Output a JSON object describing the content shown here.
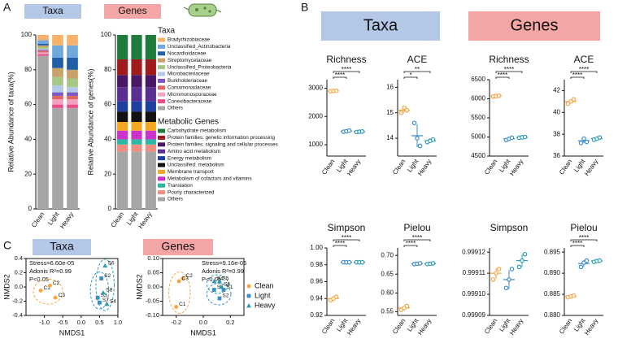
{
  "panel_labels": [
    "A",
    "B",
    "C"
  ],
  "headers": [
    {
      "text": "Taxa",
      "color": "#b4c7e7"
    },
    {
      "text": "Genes",
      "color": "#f4a6a6"
    }
  ],
  "chart_data": [
    {
      "type": "bar",
      "stacked": true,
      "title": "Taxa",
      "title_background": "#b4c7e7",
      "ylabel": "Relative Abundance of taxa(%)",
      "legend_title": "Taxa",
      "categories": [
        "Clean",
        "Light",
        "Heavy"
      ],
      "ylim": [
        0,
        100
      ],
      "yticks": [
        0,
        20,
        40,
        60,
        80,
        100
      ],
      "series": [
        {
          "name": "Bradyrhizobiaceae",
          "color": "#f6b26b",
          "values": [
            3,
            6,
            6
          ]
        },
        {
          "name": "Unclassified_Actinobacteria",
          "color": "#6fa8dc",
          "values": [
            2,
            7,
            7
          ]
        },
        {
          "name": "Nocardioidaceae",
          "color": "#1f5fa8",
          "values": [
            1,
            6,
            7
          ]
        },
        {
          "name": "Streptomycetaceae",
          "color": "#c9a26b",
          "values": [
            1,
            5,
            5
          ]
        },
        {
          "name": "Unclassified_Proteobacteria",
          "color": "#a8c686",
          "values": [
            1,
            5,
            5
          ]
        },
        {
          "name": "Microbacteriaceae",
          "color": "#b4c8ea",
          "values": [
            0.5,
            4,
            3
          ]
        },
        {
          "name": "Burkholderiaceae",
          "color": "#7e57c2",
          "values": [
            0.5,
            2,
            2
          ]
        },
        {
          "name": "Comamonadaceae",
          "color": "#e06666",
          "values": [
            1,
            2,
            2
          ]
        },
        {
          "name": "Micromonosporaceae",
          "color": "#f4a3c0",
          "values": [
            1,
            3,
            3
          ]
        },
        {
          "name": "Conexibacteraceae",
          "color": "#ea4f8a",
          "values": [
            1,
            2,
            2
          ]
        },
        {
          "name": "Others",
          "color": "#a6a6a6",
          "values": [
            88,
            58,
            58
          ]
        }
      ]
    },
    {
      "type": "bar",
      "stacked": true,
      "title": "Genes",
      "title_background": "#f4a6a6",
      "ylabel": "Relative Abundance of genes(%)",
      "legend_title": "Metabolic Genes",
      "categories": [
        "Clean",
        "Light",
        "Heavy"
      ],
      "ylim": [
        0,
        100
      ],
      "yticks": [
        0,
        20,
        40,
        60,
        80,
        100
      ],
      "series": [
        {
          "name": "Carbohydrate metabolism",
          "color": "#1e7b3c",
          "values": [
            14,
            14,
            14
          ]
        },
        {
          "name": "Protein families: genetic information processing",
          "color": "#a01c1c",
          "values": [
            9,
            9,
            9
          ]
        },
        {
          "name": "Protein families: signaling and cellular processes",
          "color": "#4a1766",
          "values": [
            7,
            7,
            7
          ]
        },
        {
          "name": "Amino acid metabolism",
          "color": "#5b2e91",
          "values": [
            8,
            8,
            8
          ]
        },
        {
          "name": "Energy metabolism",
          "color": "#1d3f9e",
          "values": [
            6,
            6,
            6
          ]
        },
        {
          "name": "Unclassified: metabolism",
          "color": "#111111",
          "values": [
            6,
            6,
            6
          ]
        },
        {
          "name": "Membrane transport",
          "color": "#f5a623",
          "values": [
            5,
            5,
            5
          ]
        },
        {
          "name": "Metabolism of cofactors and vitamins",
          "color": "#cc33cc",
          "values": [
            5,
            5,
            5
          ]
        },
        {
          "name": "Translation",
          "color": "#2fb5a3",
          "values": [
            3,
            3,
            3
          ]
        },
        {
          "name": "Poorly characterized",
          "color": "#f28e7f",
          "values": [
            4,
            4,
            4
          ]
        },
        {
          "name": "Others",
          "color": "#a6a6a6",
          "values": [
            33,
            33,
            33
          ]
        }
      ]
    },
    {
      "type": "dot",
      "title": "Richness",
      "categories": [
        "Clean",
        "Light",
        "Heavy"
      ],
      "colors": [
        "#f5a742",
        "#3c8dc6",
        "#2b9cb3"
      ],
      "values": [
        [
          2890,
          2900,
          2910
        ],
        [
          1460,
          1480,
          1500
        ],
        [
          1450,
          1460,
          1470
        ]
      ],
      "means": [
        2900,
        1480,
        1460
      ],
      "errors": [
        10,
        20,
        10
      ],
      "ylim": [
        600,
        3300
      ],
      "yticks": [
        1000,
        2000,
        3000
      ],
      "annotations": [
        "****",
        "****"
      ]
    },
    {
      "type": "dot",
      "title": "ACE",
      "categories": [
        "Clean",
        "Light",
        "Heavy"
      ],
      "colors": [
        "#f5a742",
        "#3c8dc6",
        "#2b9cb3"
      ],
      "values": [
        [
          15.0,
          15.2,
          15.1
        ],
        [
          14.6,
          14.0,
          13.7
        ],
        [
          13.85,
          13.9,
          13.95
        ]
      ],
      "means": [
        15.1,
        14.1,
        13.9
      ],
      "errors": [
        0.1,
        0.45,
        0.05
      ],
      "ylim": [
        13.3,
        16.3
      ],
      "yticks": [
        14,
        15,
        16
      ],
      "annotations": [
        "*",
        "**"
      ]
    },
    {
      "type": "dot",
      "title": "Richness",
      "categories": [
        "Clean",
        "Light",
        "Heavy"
      ],
      "colors": [
        "#f5a742",
        "#3c8dc6",
        "#2b9cb3"
      ],
      "values": [
        [
          6060,
          6070,
          6080
        ],
        [
          4920,
          4950,
          4980
        ],
        [
          4980,
          4990,
          5000
        ]
      ],
      "means": [
        6070,
        4950,
        4990
      ],
      "errors": [
        10,
        30,
        10
      ],
      "ylim": [
        4500,
        6500
      ],
      "yticks": [
        4500,
        5000,
        5500,
        6000,
        6500
      ],
      "annotations": [
        "****",
        "****"
      ]
    },
    {
      "type": "dot",
      "title": "ACE",
      "categories": [
        "Clean",
        "Light",
        "Heavy"
      ],
      "colors": [
        "#f5a742",
        "#3c8dc6",
        "#2b9cb3"
      ],
      "values": [
        [
          40.8,
          41.0,
          41.2
        ],
        [
          37.2,
          37.6,
          37.3
        ],
        [
          37.5,
          37.6,
          37.7
        ]
      ],
      "means": [
        41,
        37.4,
        37.6
      ],
      "errors": [
        0.2,
        0.2,
        0.1
      ],
      "ylim": [
        36,
        43
      ],
      "yticks": [
        36,
        38,
        40,
        42
      ],
      "annotations": [
        "****",
        "****"
      ]
    },
    {
      "type": "dot",
      "title": "Simpson",
      "categories": [
        "Clean",
        "Light",
        "Heavy"
      ],
      "colors": [
        "#f5a742",
        "#3c8dc6",
        "#2b9cb3"
      ],
      "values": [
        [
          0.938,
          0.94,
          0.942
        ],
        [
          0.983,
          0.983,
          0.983
        ],
        [
          0.983,
          0.983,
          0.983
        ]
      ],
      "means": [
        0.94,
        0.983,
        0.983
      ],
      "errors": [
        0.002,
        0.0005,
        0.0005
      ],
      "ylim": [
        0.92,
        1.0
      ],
      "yticks": [
        0.92,
        0.94,
        0.96,
        0.98,
        {
          "value": 1,
          "label": "1.00"
        }
      ],
      "annotations": [
        "****",
        "****"
      ]
    },
    {
      "type": "dot",
      "title": "Pielou",
      "categories": [
        "Clean",
        "Light",
        "Heavy"
      ],
      "colors": [
        "#f5a742",
        "#3c8dc6",
        "#2b9cb3"
      ],
      "values": [
        [
          0.555,
          0.56,
          0.565
        ],
        [
          0.677,
          0.678,
          0.679
        ],
        [
          0.677,
          0.678,
          0.679
        ]
      ],
      "means": [
        0.56,
        0.678,
        0.678
      ],
      "errors": [
        0.005,
        0.001,
        0.001
      ],
      "ylim": [
        0.54,
        0.72
      ],
      "yticks": [
        0.55,
        {
          "value": 0.6,
          "label": "0.60"
        },
        0.65,
        {
          "value": 0.7,
          "label": "0.70"
        }
      ],
      "annotations": [
        "****",
        "****"
      ]
    },
    {
      "type": "dot",
      "title": "Simpson",
      "categories": [
        "Clean",
        "Light",
        "Heavy"
      ],
      "colors": [
        "#f5a742",
        "#3c8dc6",
        "#2b9cb3"
      ],
      "values": [
        [
          0.999107,
          0.99911,
          0.999112
        ],
        [
          0.999103,
          0.999107,
          0.999112
        ],
        [
          0.999113,
          0.999116,
          0.999119
        ]
      ],
      "means": [
        0.99911,
        0.999107,
        0.999116
      ],
      "errors": [
        2.5e-06,
        4.5e-06,
        3e-06
      ],
      "ylim": [
        0.99909,
        0.999122
      ],
      "yticks": [
        0.99909,
        {
          "value": 0.9991,
          "label": "0.99910"
        },
        0.99911,
        0.99912
      ],
      "annotations": []
    },
    {
      "type": "dot",
      "title": "Pielou",
      "categories": [
        "Clean",
        "Light",
        "Heavy"
      ],
      "colors": [
        "#f5a742",
        "#3c8dc6",
        "#2b9cb3"
      ],
      "values": [
        [
          0.8843,
          0.8845,
          0.8847
        ],
        [
          0.8915,
          0.8925,
          0.893
        ],
        [
          0.8927,
          0.8929,
          0.893
        ]
      ],
      "means": [
        0.8845,
        0.8923,
        0.8929
      ],
      "errors": [
        0.0002,
        0.0008,
        0.0002
      ],
      "ylim": [
        0.88,
        0.896
      ],
      "yticks": [
        {
          "value": 0.88,
          "label": "0.880"
        },
        0.885,
        {
          "value": 0.89,
          "label": "0.890"
        },
        0.895
      ],
      "annotations": [
        "****",
        "****"
      ]
    },
    {
      "type": "scatter",
      "title": "Taxa",
      "title_background": "#b4c7e7",
      "xlabel": "NMDS1",
      "ylabel": "NMDS2",
      "annotations": [
        "Stress=6.60e-05",
        "Adonis R²=0.99",
        "P<0.05"
      ],
      "xlim": [
        -1.5,
        1.0
      ],
      "ylim": [
        -0.4,
        0.4
      ],
      "xticks": [
        {
          "value": -1,
          "label": "-1.0"
        },
        -0.5,
        {
          "value": 0,
          "label": "0.0"
        },
        0.5,
        {
          "value": 1,
          "label": "1.0"
        }
      ],
      "yticks": [
        -0.4,
        -0.2,
        {
          "value": 0,
          "label": "0.0"
        },
        0.2,
        0.4
      ],
      "series": [
        {
          "color": "#f5a742",
          "marker": "circle",
          "labels": [
            "C1",
            "C2",
            "C3"
          ],
          "x": [
            -1.1,
            -0.85,
            -0.7
          ],
          "y": [
            -0.05,
            0.02,
            -0.15
          ]
        },
        {
          "color": "#3c8dc6",
          "marker": "square",
          "labels": [
            "S2",
            "S3",
            "S7"
          ],
          "x": [
            0.55,
            0.45,
            0.5
          ],
          "y": [
            0.12,
            -0.15,
            -0.22
          ]
        },
        {
          "color": "#2b9cb3",
          "marker": "triangle",
          "labels": [
            "S6",
            "S8",
            "S4"
          ],
          "x": [
            0.65,
            0.6,
            0.7
          ],
          "y": [
            0.3,
            -0.08,
            -0.24
          ]
        }
      ]
    },
    {
      "type": "scatter",
      "title": "Genes",
      "title_background": "#f4a6a6",
      "xlabel": "NMDS1",
      "ylabel": "NMDS2",
      "annotations": [
        "Stress=9.16e-05",
        "Adonis R²=0.99",
        "P<0.05"
      ],
      "legend": "right",
      "xlim": [
        -0.3,
        0.3
      ],
      "ylim": [
        -0.1,
        0.1
      ],
      "xticks": [
        -0.2,
        {
          "value": 0,
          "label": "0.0"
        },
        0.2
      ],
      "yticks": [
        {
          "value": -0.1,
          "label": "-0.10"
        },
        -0.05,
        {
          "value": 0,
          "label": "0.00"
        },
        0.05,
        {
          "value": 0.1,
          "label": "0.10"
        }
      ],
      "series": [
        {
          "name": "Clean",
          "color": "#f5a742",
          "marker": "circle",
          "labels": [
            "C1",
            "C2",
            "C3"
          ],
          "x": [
            -0.2,
            -0.15,
            -0.18
          ],
          "y": [
            -0.07,
            0.03,
            0.02
          ]
        },
        {
          "name": "Light",
          "color": "#3c8dc6",
          "marker": "square",
          "labels": [
            "S1",
            "S2",
            "S3"
          ],
          "x": [
            0.15,
            0.12,
            0.08
          ],
          "y": [
            -0.01,
            -0.04,
            -0.01
          ]
        },
        {
          "name": "Heavy",
          "color": "#2b9cb3",
          "marker": "triangle",
          "labels": [
            "S4",
            "S5",
            "S6"
          ],
          "x": [
            0.08,
            0.12,
            0.13
          ],
          "y": [
            0.02,
            0.02,
            0.0
          ]
        }
      ]
    }
  ]
}
